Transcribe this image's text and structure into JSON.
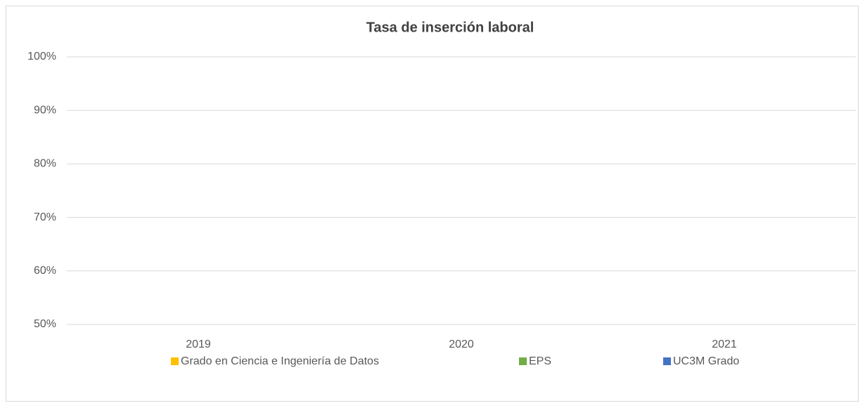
{
  "chart_data": {
    "type": "bar",
    "title": "Tasa de inserción laboral",
    "categories": [
      "2019",
      "2020",
      "2021"
    ],
    "series": [
      {
        "name": "Grado en Ciencia e Ingeniería de Datos",
        "color": "#ffc000",
        "values": [
          50,
          50,
          50
        ]
      },
      {
        "name": "EPS",
        "color": "#70ad47",
        "values": [
          50,
          50,
          50
        ]
      },
      {
        "name": "UC3M Grado",
        "color": "#4472c4",
        "values": [
          50,
          50,
          50
        ]
      }
    ],
    "ylim": [
      50,
      100
    ],
    "yticks": [
      {
        "value": 50,
        "label": "50%"
      },
      {
        "value": 60,
        "label": "60%"
      },
      {
        "value": 70,
        "label": "70%"
      },
      {
        "value": 80,
        "label": "80%"
      },
      {
        "value": 90,
        "label": "90%"
      },
      {
        "value": 100,
        "label": "100%"
      }
    ],
    "grid": true,
    "legend": "bottom"
  }
}
